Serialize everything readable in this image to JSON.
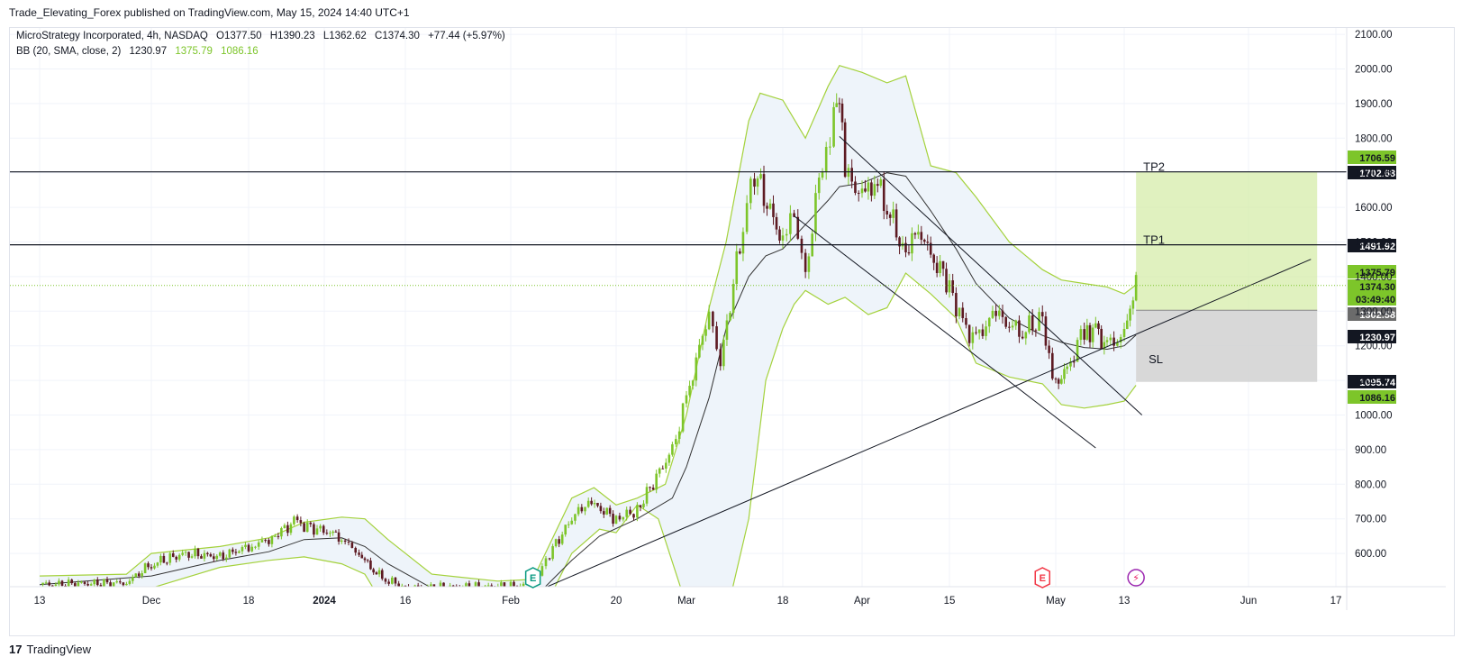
{
  "publisher_line": "Trade_Elevating_Forex published on TradingView.com, May 15, 2024 14:40 UTC+1",
  "legend": {
    "symbol": "MicroStrategy Incorporated, 4h, NASDAQ",
    "ohlc": {
      "open": "O1377.50",
      "high": "H1390.23",
      "low": "L1362.62",
      "close": "C1374.30",
      "change": "+77.44 (+5.97%)"
    },
    "bb": {
      "label": "BB (20, SMA, close, 2)",
      "basis": "1230.97",
      "upper": "1375.79",
      "lower": "1086.16"
    }
  },
  "brand": {
    "logo": "17",
    "name": "TradingView"
  },
  "colors": {
    "bull": "#7dc52a",
    "bear": "#5d1a22",
    "band": "#a4d23c",
    "band_fill": "#eef4fa",
    "basis": "#333333",
    "line": "#131722",
    "target": "#d6ecaa",
    "stop": "#d1d1d1"
  },
  "chart_data": {
    "type": "candlestick",
    "title": "MicroStrategy Incorporated, 4h, NASDAQ",
    "y_axis": {
      "ticks": [
        "2100.00",
        "2000.00",
        "1900.00",
        "1800.00",
        "1700.00",
        "1600.00",
        "1500.00",
        "1400.00",
        "1300.00",
        "1200.00",
        "1100.00",
        "1000.00",
        "900.00",
        "800.00",
        "700.00",
        "600.00"
      ],
      "range": [
        500,
        2140
      ]
    },
    "x_axis": {
      "ticks": [
        "13",
        "Dec",
        "18",
        "2024",
        "16",
        "Feb",
        "20",
        "Mar",
        "18",
        "Apr",
        "15",
        "May",
        "13",
        "Jun",
        "17"
      ],
      "bold": [
        "2024"
      ]
    },
    "horizontal_lines": [
      {
        "name": "TP2",
        "price": 1702.68
      },
      {
        "name": "TP1",
        "price": 1491.92
      }
    ],
    "position": {
      "entry": 1302.58,
      "target": 1702.68,
      "stop": 1095.74,
      "target_label": "TP2",
      "stop_label": "SL",
      "tp1_label": "TP1"
    },
    "last_price_line": 1374.3,
    "price_labels": [
      {
        "value": "1706.59",
        "style": "green"
      },
      {
        "value": "1702.68",
        "style": "dark"
      },
      {
        "value": "1491.92",
        "style": "dark"
      },
      {
        "value": "1375.79",
        "style": "green"
      },
      {
        "value": "1374.30",
        "style": "green"
      },
      {
        "value": "03:49:40",
        "style": "green"
      },
      {
        "value": "1302.58",
        "style": "gray"
      },
      {
        "value": "1230.97",
        "style": "dark"
      },
      {
        "value": "1095.74",
        "style": "dark"
      },
      {
        "value": "1086.16",
        "style": "green"
      }
    ],
    "events": [
      {
        "label": "E",
        "type": "earnings-past",
        "date": "Feb 6"
      },
      {
        "label": "E",
        "type": "earnings-upcoming",
        "date": "Apr 30"
      },
      {
        "label": "⚡",
        "type": "dividend-split",
        "date": "May 14"
      }
    ],
    "trendlines": [
      {
        "name": "rising-support",
        "from": {
          "date": "2024-02-07",
          "price": 500
        },
        "to": {
          "date": "2024-06-13",
          "price": 1450
        }
      },
      {
        "name": "channel-upper",
        "from": {
          "date": "2024-03-28",
          "price": 1805
        },
        "to": {
          "date": "2024-05-16",
          "price": 1000
        }
      },
      {
        "name": "channel-lower",
        "from": {
          "date": "2024-03-20",
          "price": 1575
        },
        "to": {
          "date": "2024-05-08",
          "price": 905
        }
      }
    ],
    "close_path": [
      [
        "2023-11-13",
        510
      ],
      [
        "2023-11-27",
        515
      ],
      [
        "2023-12-01",
        570
      ],
      [
        "2023-12-07",
        600
      ],
      [
        "2023-12-13",
        590
      ],
      [
        "2023-12-18",
        620
      ],
      [
        "2023-12-22",
        640
      ],
      [
        "2023-12-27",
        690
      ],
      [
        "2023-12-29",
        680
      ],
      [
        "2024-01-03",
        660
      ],
      [
        "2024-01-05",
        640
      ],
      [
        "2024-01-08",
        600
      ],
      [
        "2024-01-10",
        560
      ],
      [
        "2024-01-12",
        530
      ],
      [
        "2024-01-16",
        500
      ],
      [
        "2024-02-01",
        505
      ],
      [
        "2024-02-05",
        510
      ],
      [
        "2024-02-06",
        535
      ],
      [
        "2024-02-08",
        600
      ],
      [
        "2024-02-12",
        700
      ],
      [
        "2024-02-15",
        750
      ],
      [
        "2024-02-20",
        700
      ],
      [
        "2024-02-23",
        725
      ],
      [
        "2024-02-28",
        900
      ],
      [
        "2024-03-01",
        1050
      ],
      [
        "2024-03-05",
        1300
      ],
      [
        "2024-03-07",
        1150
      ],
      [
        "2024-03-11",
        1550
      ],
      [
        "2024-03-13",
        1700
      ],
      [
        "2024-03-18",
        1500
      ],
      [
        "2024-03-20",
        1580
      ],
      [
        "2024-03-22",
        1400
      ],
      [
        "2024-03-25",
        1750
      ],
      [
        "2024-03-27",
        1850
      ],
      [
        "2024-03-28",
        1950
      ],
      [
        "2024-03-29",
        1720
      ],
      [
        "2024-04-01",
        1620
      ],
      [
        "2024-04-03",
        1680
      ],
      [
        "2024-04-05",
        1600
      ],
      [
        "2024-04-08",
        1460
      ],
      [
        "2024-04-10",
        1540
      ],
      [
        "2024-04-12",
        1460
      ],
      [
        "2024-04-15",
        1380
      ],
      [
        "2024-04-17",
        1260
      ],
      [
        "2024-04-19",
        1220
      ],
      [
        "2024-04-22",
        1300
      ],
      [
        "2024-04-24",
        1260
      ],
      [
        "2024-04-26",
        1240
      ],
      [
        "2024-04-29",
        1280
      ],
      [
        "2024-04-30",
        1150
      ],
      [
        "2024-05-01",
        1090
      ],
      [
        "2024-05-03",
        1130
      ],
      [
        "2024-05-06",
        1250
      ],
      [
        "2024-05-08",
        1240
      ],
      [
        "2024-05-10",
        1200
      ],
      [
        "2024-05-13",
        1230
      ],
      [
        "2024-05-14",
        1297
      ],
      [
        "2024-05-15",
        1374
      ]
    ],
    "bollinger_upper": [
      [
        "2023-11-13",
        535
      ],
      [
        "2023-11-27",
        540
      ],
      [
        "2023-12-01",
        600
      ],
      [
        "2023-12-13",
        620
      ],
      [
        "2023-12-22",
        645
      ],
      [
        "2023-12-29",
        690
      ],
      [
        "2024-01-05",
        705
      ],
      [
        "2024-01-09",
        700
      ],
      [
        "2024-01-13",
        640
      ],
      [
        "2024-01-20",
        540
      ],
      [
        "2024-01-30",
        520
      ],
      [
        "2024-02-05",
        525
      ],
      [
        "2024-02-12",
        760
      ],
      [
        "2024-02-16",
        790
      ],
      [
        "2024-02-20",
        740
      ],
      [
        "2024-02-23",
        760
      ],
      [
        "2024-02-27",
        800
      ],
      [
        "2024-03-01",
        1000
      ],
      [
        "2024-03-05",
        1310
      ],
      [
        "2024-03-08",
        1500
      ],
      [
        "2024-03-12",
        1850
      ],
      [
        "2024-03-14",
        1930
      ],
      [
        "2024-03-18",
        1910
      ],
      [
        "2024-03-22",
        1800
      ],
      [
        "2024-03-26",
        1950
      ],
      [
        "2024-03-28",
        2010
      ],
      [
        "2024-04-01",
        1990
      ],
      [
        "2024-04-05",
        1960
      ],
      [
        "2024-04-08",
        1980
      ],
      [
        "2024-04-12",
        1720
      ],
      [
        "2024-04-16",
        1700
      ],
      [
        "2024-04-19",
        1630
      ],
      [
        "2024-04-24",
        1500
      ],
      [
        "2024-04-29",
        1420
      ],
      [
        "2024-05-02",
        1390
      ],
      [
        "2024-05-06",
        1380
      ],
      [
        "2024-05-10",
        1370
      ],
      [
        "2024-05-13",
        1350
      ],
      [
        "2024-05-15",
        1376
      ]
    ],
    "bollinger_lower": [
      [
        "2023-11-13",
        490
      ],
      [
        "2023-12-01",
        500
      ],
      [
        "2023-12-13",
        560
      ],
      [
        "2023-12-22",
        580
      ],
      [
        "2023-12-29",
        590
      ],
      [
        "2024-01-05",
        570
      ],
      [
        "2024-01-09",
        540
      ],
      [
        "2024-01-13",
        430
      ],
      [
        "2024-02-07",
        440
      ],
      [
        "2024-02-12",
        600
      ],
      [
        "2024-02-17",
        670
      ],
      [
        "2024-02-20",
        660
      ],
      [
        "2024-02-23",
        740
      ],
      [
        "2024-02-26",
        700
      ],
      [
        "2024-03-01",
        450
      ],
      [
        "2024-03-05",
        380
      ],
      [
        "2024-03-08",
        420
      ],
      [
        "2024-03-12",
        700
      ],
      [
        "2024-03-15",
        1100
      ],
      [
        "2024-03-18",
        1250
      ],
      [
        "2024-03-20",
        1320
      ],
      [
        "2024-03-22",
        1360
      ],
      [
        "2024-03-26",
        1320
      ],
      [
        "2024-03-29",
        1340
      ],
      [
        "2024-04-02",
        1290
      ],
      [
        "2024-04-05",
        1310
      ],
      [
        "2024-04-08",
        1410
      ],
      [
        "2024-04-12",
        1350
      ],
      [
        "2024-04-16",
        1280
      ],
      [
        "2024-04-19",
        1150
      ],
      [
        "2024-04-24",
        1110
      ],
      [
        "2024-04-29",
        1090
      ],
      [
        "2024-05-02",
        1030
      ],
      [
        "2024-05-06",
        1020
      ],
      [
        "2024-05-10",
        1030
      ],
      [
        "2024-05-13",
        1040
      ],
      [
        "2024-05-15",
        1086
      ]
    ],
    "bollinger_basis": [
      [
        "2023-11-13",
        510
      ],
      [
        "2023-12-01",
        535
      ],
      [
        "2023-12-13",
        580
      ],
      [
        "2023-12-22",
        605
      ],
      [
        "2023-12-29",
        640
      ],
      [
        "2024-01-05",
        645
      ],
      [
        "2024-01-09",
        620
      ],
      [
        "2024-01-13",
        570
      ],
      [
        "2024-01-20",
        500
      ],
      [
        "2024-02-07",
        500
      ],
      [
        "2024-02-12",
        580
      ],
      [
        "2024-02-17",
        650
      ],
      [
        "2024-02-23",
        700
      ],
      [
        "2024-02-28",
        760
      ],
      [
        "2024-03-01",
        850
      ],
      [
        "2024-03-05",
        1050
      ],
      [
        "2024-03-08",
        1250
      ],
      [
        "2024-03-12",
        1400
      ],
      [
        "2024-03-15",
        1460
      ],
      [
        "2024-03-18",
        1480
      ],
      [
        "2024-03-22",
        1550
      ],
      [
        "2024-03-26",
        1620
      ],
      [
        "2024-03-28",
        1660
      ],
      [
        "2024-04-01",
        1670
      ],
      [
        "2024-04-05",
        1700
      ],
      [
        "2024-04-08",
        1690
      ],
      [
        "2024-04-12",
        1590
      ],
      [
        "2024-04-16",
        1480
      ],
      [
        "2024-04-19",
        1380
      ],
      [
        "2024-04-24",
        1280
      ],
      [
        "2024-04-29",
        1230
      ],
      [
        "2024-05-02",
        1210
      ],
      [
        "2024-05-06",
        1195
      ],
      [
        "2024-05-10",
        1190
      ],
      [
        "2024-05-13",
        1200
      ],
      [
        "2024-05-15",
        1231
      ]
    ]
  }
}
